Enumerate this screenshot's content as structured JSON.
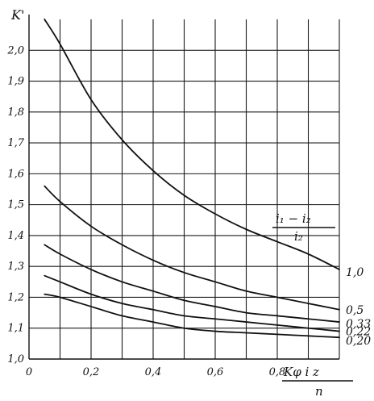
{
  "chart_data": {
    "type": "line",
    "ylabel": "K'",
    "xlabel": {
      "numerator": "Kφ i z",
      "denominator": "n"
    },
    "legend_title": {
      "numerator": "i₁ − i₂",
      "denominator": "i₂"
    },
    "x_ticks": [
      "0",
      "0,2",
      "0,4",
      "0,6",
      "0,8"
    ],
    "y_ticks": [
      "1,0",
      "1,1",
      "1,2",
      "1,3",
      "1,4",
      "1,5",
      "1,6",
      "1,7",
      "1,8",
      "1,9",
      "2,0"
    ],
    "xlim": [
      0,
      1.0
    ],
    "ylim": [
      1.0,
      2.1
    ],
    "grid": true,
    "series": [
      {
        "name": "1,0",
        "x": [
          0.05,
          0.1,
          0.2,
          0.3,
          0.4,
          0.5,
          0.6,
          0.7,
          0.8,
          0.9,
          1.0
        ],
        "values": [
          2.1,
          2.02,
          1.84,
          1.71,
          1.61,
          1.53,
          1.47,
          1.42,
          1.38,
          1.34,
          1.29
        ]
      },
      {
        "name": "0,5",
        "x": [
          0.05,
          0.1,
          0.2,
          0.3,
          0.4,
          0.5,
          0.6,
          0.7,
          0.8,
          0.9,
          1.0
        ],
        "values": [
          1.56,
          1.51,
          1.43,
          1.37,
          1.32,
          1.28,
          1.25,
          1.22,
          1.2,
          1.18,
          1.16
        ]
      },
      {
        "name": "0,33",
        "x": [
          0.05,
          0.1,
          0.2,
          0.3,
          0.4,
          0.5,
          0.6,
          0.7,
          0.8,
          0.9,
          1.0
        ],
        "values": [
          1.37,
          1.34,
          1.29,
          1.25,
          1.22,
          1.19,
          1.17,
          1.15,
          1.14,
          1.13,
          1.12
        ]
      },
      {
        "name": "0,22",
        "x": [
          0.05,
          0.1,
          0.2,
          0.3,
          0.4,
          0.5,
          0.6,
          0.7,
          0.8,
          0.9,
          1.0
        ],
        "values": [
          1.27,
          1.25,
          1.21,
          1.18,
          1.16,
          1.14,
          1.13,
          1.12,
          1.11,
          1.1,
          1.09
        ]
      },
      {
        "name": "0,20",
        "x": [
          0.05,
          0.1,
          0.2,
          0.3,
          0.4,
          0.5,
          0.6,
          0.7,
          0.8,
          0.9,
          1.0
        ],
        "values": [
          1.21,
          1.2,
          1.17,
          1.14,
          1.12,
          1.1,
          1.09,
          1.085,
          1.08,
          1.075,
          1.07
        ]
      }
    ]
  }
}
